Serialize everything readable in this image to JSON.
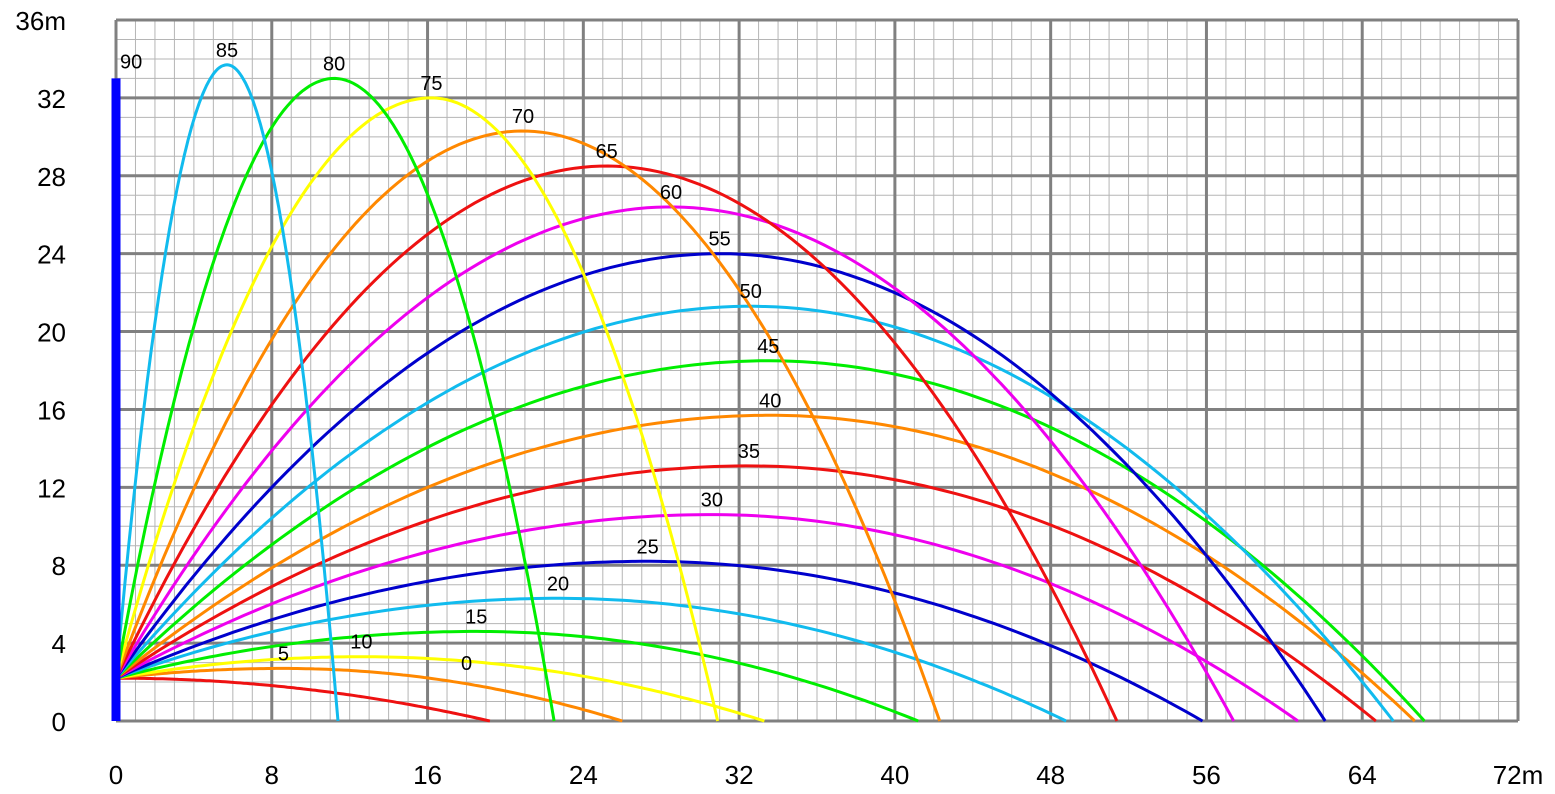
{
  "chart_data": {
    "type": "line",
    "title": "",
    "xlabel": "",
    "ylabel": "",
    "xlim": [
      0,
      72
    ],
    "ylim": [
      0,
      36
    ],
    "x_ticks": [
      "0",
      "8",
      "16",
      "24",
      "32",
      "40",
      "48",
      "56",
      "64",
      "72m"
    ],
    "y_ticks": [
      "0",
      "4",
      "8",
      "12",
      "16",
      "20",
      "24",
      "28",
      "32",
      "36m"
    ],
    "grid": true,
    "legend": "inline labels at apex of each curve",
    "launch_height": 2.2,
    "series": [
      {
        "name": "0",
        "color": "#ee1111",
        "range": 19.2,
        "apex": [
          0,
          2.2
        ]
      },
      {
        "name": "5",
        "color": "#ff8800",
        "range": 26.0,
        "apex": [
          8.6,
          2.7
        ]
      },
      {
        "name": "10",
        "color": "#ffff00",
        "range": 33.3,
        "apex": [
          12.6,
          3.3
        ]
      },
      {
        "name": "15",
        "color": "#00ee00",
        "range": 41.2,
        "apex": [
          18.5,
          4.6
        ]
      },
      {
        "name": "20",
        "color": "#11bbee",
        "range": 48.8,
        "apex": [
          22.7,
          6.3
        ]
      },
      {
        "name": "25",
        "color": "#0000cc",
        "range": 55.8,
        "apex": [
          27.3,
          8.2
        ]
      },
      {
        "name": "30",
        "color": "#ee00ee",
        "range": 60.7,
        "apex": [
          30.6,
          10.6
        ]
      },
      {
        "name": "35",
        "color": "#ee1111",
        "range": 64.7,
        "apex": [
          32.5,
          13.1
        ]
      },
      {
        "name": "40",
        "color": "#ff8800",
        "range": 66.7,
        "apex": [
          33.6,
          15.7
        ]
      },
      {
        "name": "45",
        "color": "#00ee00",
        "range": 67.2,
        "apex": [
          33.5,
          18.5
        ]
      },
      {
        "name": "50",
        "color": "#11bbee",
        "range": 65.6,
        "apex": [
          32.6,
          21.3
        ]
      },
      {
        "name": "55",
        "color": "#0000cc",
        "range": 62.1,
        "apex": [
          31.0,
          24.0
        ]
      },
      {
        "name": "60",
        "color": "#ee00ee",
        "range": 57.4,
        "apex": [
          28.5,
          26.4
        ]
      },
      {
        "name": "65",
        "color": "#ee1111",
        "range": 51.4,
        "apex": [
          25.2,
          28.5
        ]
      },
      {
        "name": "70",
        "color": "#ff8800",
        "range": 42.3,
        "apex": [
          20.9,
          30.3
        ]
      },
      {
        "name": "75",
        "color": "#ffff00",
        "range": 30.9,
        "apex": [
          16.2,
          32.0
        ]
      },
      {
        "name": "80",
        "color": "#00ee00",
        "range": 22.5,
        "apex": [
          11.2,
          33.0
        ]
      },
      {
        "name": "85",
        "color": "#11bbee",
        "range": 11.4,
        "apex": [
          5.7,
          33.7
        ]
      },
      {
        "name": "90",
        "color": "#0000ff",
        "range": 0.0,
        "apex": [
          0,
          33.0
        ]
      }
    ]
  }
}
